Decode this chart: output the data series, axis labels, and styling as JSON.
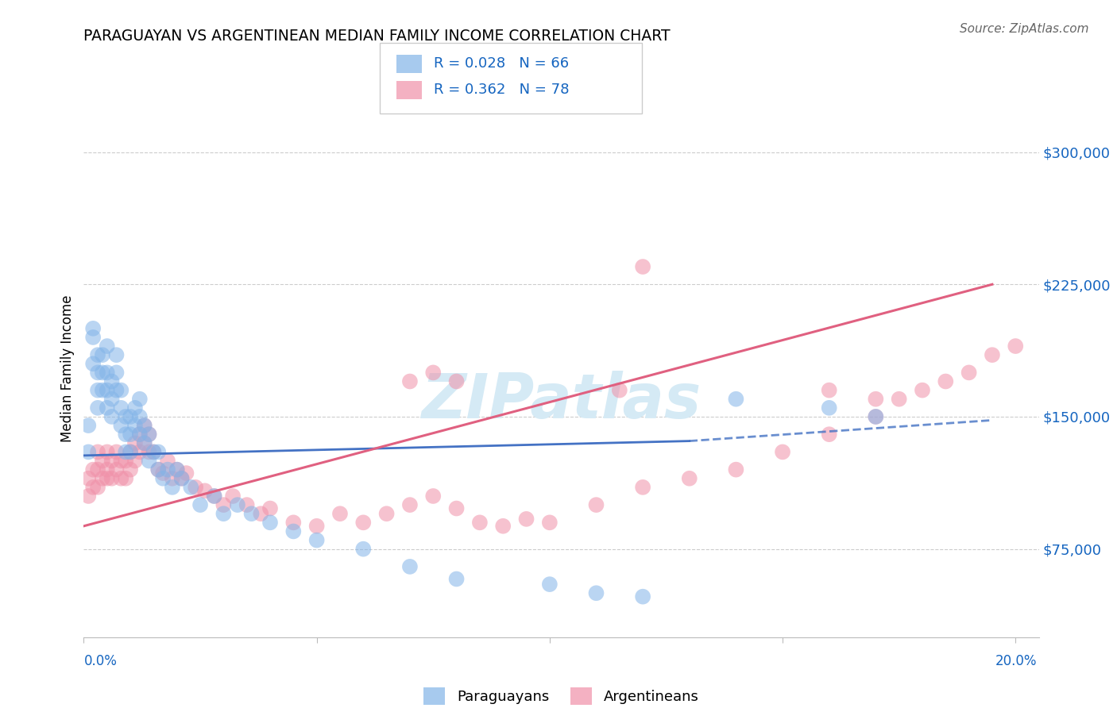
{
  "title": "PARAGUAYAN VS ARGENTINEAN MEDIAN FAMILY INCOME CORRELATION CHART",
  "source": "Source: ZipAtlas.com",
  "ylabel": "Median Family Income",
  "ytick_labels": [
    "$75,000",
    "$150,000",
    "$225,000",
    "$300,000"
  ],
  "ytick_values": [
    75000,
    150000,
    225000,
    300000
  ],
  "ymin": 25000,
  "ymax": 330000,
  "xmin": 0.0,
  "xmax": 0.205,
  "blue_R": 0.028,
  "blue_N": 66,
  "pink_R": 0.362,
  "pink_N": 78,
  "blue_color": "#82B4E8",
  "pink_color": "#F090A8",
  "blue_line_color": "#4472C4",
  "pink_line_color": "#E06080",
  "legend_R_color": "#1565C0",
  "tick_label_color": "#1565C0",
  "background_color": "#FFFFFF",
  "watermark_color": "#D5EAF5",
  "blue_scatter_x": [
    0.001,
    0.001,
    0.002,
    0.002,
    0.002,
    0.003,
    0.003,
    0.003,
    0.003,
    0.004,
    0.004,
    0.004,
    0.005,
    0.005,
    0.005,
    0.005,
    0.006,
    0.006,
    0.006,
    0.007,
    0.007,
    0.007,
    0.008,
    0.008,
    0.008,
    0.009,
    0.009,
    0.009,
    0.01,
    0.01,
    0.01,
    0.011,
    0.011,
    0.012,
    0.012,
    0.012,
    0.013,
    0.013,
    0.014,
    0.014,
    0.015,
    0.016,
    0.016,
    0.017,
    0.018,
    0.019,
    0.02,
    0.021,
    0.023,
    0.025,
    0.028,
    0.03,
    0.033,
    0.036,
    0.04,
    0.045,
    0.05,
    0.06,
    0.07,
    0.08,
    0.1,
    0.11,
    0.12,
    0.14,
    0.16,
    0.17
  ],
  "blue_scatter_y": [
    130000,
    145000,
    195000,
    180000,
    200000,
    185000,
    175000,
    165000,
    155000,
    175000,
    185000,
    165000,
    190000,
    175000,
    165000,
    155000,
    170000,
    160000,
    150000,
    175000,
    185000,
    165000,
    155000,
    145000,
    165000,
    130000,
    140000,
    150000,
    140000,
    130000,
    150000,
    145000,
    155000,
    150000,
    160000,
    140000,
    145000,
    135000,
    125000,
    140000,
    130000,
    130000,
    120000,
    115000,
    120000,
    110000,
    120000,
    115000,
    110000,
    100000,
    105000,
    95000,
    100000,
    95000,
    90000,
    85000,
    80000,
    75000,
    65000,
    58000,
    55000,
    50000,
    48000,
    160000,
    155000,
    150000
  ],
  "pink_scatter_x": [
    0.001,
    0.001,
    0.002,
    0.002,
    0.003,
    0.003,
    0.003,
    0.004,
    0.004,
    0.005,
    0.005,
    0.005,
    0.006,
    0.006,
    0.007,
    0.007,
    0.008,
    0.008,
    0.009,
    0.009,
    0.01,
    0.01,
    0.011,
    0.011,
    0.012,
    0.012,
    0.013,
    0.013,
    0.014,
    0.014,
    0.015,
    0.016,
    0.017,
    0.018,
    0.019,
    0.02,
    0.021,
    0.022,
    0.024,
    0.026,
    0.028,
    0.03,
    0.032,
    0.035,
    0.038,
    0.04,
    0.045,
    0.05,
    0.055,
    0.06,
    0.065,
    0.07,
    0.075,
    0.08,
    0.085,
    0.09,
    0.095,
    0.1,
    0.11,
    0.12,
    0.13,
    0.14,
    0.15,
    0.16,
    0.17,
    0.175,
    0.18,
    0.185,
    0.19,
    0.195,
    0.2,
    0.115,
    0.12,
    0.07,
    0.075,
    0.08,
    0.16,
    0.17
  ],
  "pink_scatter_y": [
    105000,
    115000,
    120000,
    110000,
    130000,
    120000,
    110000,
    125000,
    115000,
    130000,
    120000,
    115000,
    125000,
    115000,
    130000,
    120000,
    125000,
    115000,
    125000,
    115000,
    130000,
    120000,
    135000,
    125000,
    140000,
    130000,
    145000,
    135000,
    140000,
    130000,
    130000,
    120000,
    118000,
    125000,
    115000,
    120000,
    115000,
    118000,
    110000,
    108000,
    105000,
    100000,
    105000,
    100000,
    95000,
    98000,
    90000,
    88000,
    95000,
    90000,
    95000,
    100000,
    105000,
    98000,
    90000,
    88000,
    92000,
    90000,
    100000,
    110000,
    115000,
    120000,
    130000,
    140000,
    150000,
    160000,
    165000,
    170000,
    175000,
    185000,
    190000,
    165000,
    235000,
    170000,
    175000,
    170000,
    165000,
    160000
  ]
}
